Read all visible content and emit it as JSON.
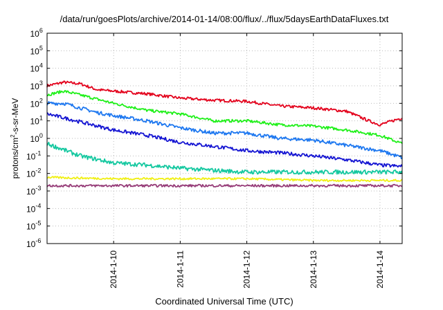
{
  "chart_data": {
    "type": "line",
    "title": "/data/run/goesPlots/archive/2014-01-14/08:00/flux/../flux/5daysEarthDataFluxes.txt",
    "xlabel": "Coordinated Universal Time (UTC)",
    "ylabel": "protons/cm2-s-sr-MeV",
    "ylabel_parts": {
      "pre": "protons/cm",
      "sup": "2",
      "post": "-s-sr-MeV"
    },
    "x_ticks": [
      "2014-1-10",
      "2014-1-11",
      "2014-1-12",
      "2014-1-13",
      "2014-1-14"
    ],
    "y_scale": "log",
    "ylim": [
      1e-06,
      1000000.0
    ],
    "y_ticks": [
      {
        "base": "10",
        "exp": "-6",
        "value": 1e-06
      },
      {
        "base": "10",
        "exp": "-5",
        "value": 1e-05
      },
      {
        "base": "10",
        "exp": "-4",
        "value": 0.0001
      },
      {
        "base": "10",
        "exp": "-3",
        "value": 0.001
      },
      {
        "base": "10",
        "exp": "-2",
        "value": 0.01
      },
      {
        "base": "10",
        "exp": "-1",
        "value": 0.1
      },
      {
        "base": "10",
        "exp": "0",
        "value": 1
      },
      {
        "base": "10",
        "exp": "1",
        "value": 10
      },
      {
        "base": "10",
        "exp": "2",
        "value": 100
      },
      {
        "base": "10",
        "exp": "3",
        "value": 1000
      },
      {
        "base": "10",
        "exp": "4",
        "value": 10000
      },
      {
        "base": "10",
        "exp": "5",
        "value": 100000
      },
      {
        "base": "10",
        "exp": "6",
        "value": 1000000
      }
    ],
    "grid": true,
    "xlim": [
      "2014-01-09 00:00",
      "2014-01-14 08:00"
    ],
    "series": [
      {
        "color": "#e3001b",
        "noise": 0.08,
        "points": [
          [
            "2014-01-09 00:00",
            1000
          ],
          [
            "2014-01-09 06:00",
            1600
          ],
          [
            "2014-01-09 12:00",
            1300
          ],
          [
            "2014-01-09 18:00",
            600
          ],
          [
            "2014-01-10 00:00",
            500
          ],
          [
            "2014-01-10 12:00",
            350
          ],
          [
            "2014-01-11 00:00",
            200
          ],
          [
            "2014-01-11 12:00",
            150
          ],
          [
            "2014-01-12 00:00",
            130
          ],
          [
            "2014-01-12 12:00",
            70
          ],
          [
            "2014-01-13 00:00",
            55
          ],
          [
            "2014-01-13 12:00",
            35
          ],
          [
            "2014-01-13 20:00",
            10
          ],
          [
            "2014-01-14 00:00",
            6
          ],
          [
            "2014-01-14 08:00",
            15
          ]
        ]
      },
      {
        "color": "#1ef018",
        "noise": 0.08,
        "points": [
          [
            "2014-01-09 00:00",
            300
          ],
          [
            "2014-01-09 06:00",
            500
          ],
          [
            "2014-01-09 12:00",
            300
          ],
          [
            "2014-01-10 00:00",
            100
          ],
          [
            "2014-01-10 12:00",
            40
          ],
          [
            "2014-01-11 00:00",
            25
          ],
          [
            "2014-01-11 12:00",
            10
          ],
          [
            "2014-01-12 00:00",
            10
          ],
          [
            "2014-01-12 12:00",
            6
          ],
          [
            "2014-01-13 00:00",
            5
          ],
          [
            "2014-01-13 12:00",
            3
          ],
          [
            "2014-01-14 00:00",
            1.5
          ],
          [
            "2014-01-14 08:00",
            0.5
          ]
        ]
      },
      {
        "color": "#1e78f0",
        "noise": 0.1,
        "points": [
          [
            "2014-01-09 00:00",
            100
          ],
          [
            "2014-01-09 06:00",
            100
          ],
          [
            "2014-01-09 18:00",
            30
          ],
          [
            "2014-01-10 00:00",
            20
          ],
          [
            "2014-01-10 12:00",
            10
          ],
          [
            "2014-01-11 00:00",
            4
          ],
          [
            "2014-01-11 12:00",
            2
          ],
          [
            "2014-01-12 00:00",
            2
          ],
          [
            "2014-01-12 12:00",
            1
          ],
          [
            "2014-01-13 00:00",
            0.8
          ],
          [
            "2014-01-13 12:00",
            0.4
          ],
          [
            "2014-01-14 00:00",
            0.2
          ],
          [
            "2014-01-14 08:00",
            0.08
          ]
        ]
      },
      {
        "color": "#1414d2",
        "noise": 0.1,
        "points": [
          [
            "2014-01-09 00:00",
            25
          ],
          [
            "2014-01-09 06:00",
            15
          ],
          [
            "2014-01-10 00:00",
            3
          ],
          [
            "2014-01-10 12:00",
            1.5
          ],
          [
            "2014-01-11 00:00",
            0.6
          ],
          [
            "2014-01-11 12:00",
            0.35
          ],
          [
            "2014-01-12 00:00",
            0.2
          ],
          [
            "2014-01-12 12:00",
            0.15
          ],
          [
            "2014-01-13 00:00",
            0.1
          ],
          [
            "2014-01-13 12:00",
            0.06
          ],
          [
            "2014-01-14 00:00",
            0.03
          ],
          [
            "2014-01-14 08:00",
            0.025
          ]
        ]
      },
      {
        "color": "#14c8a0",
        "noise": 0.12,
        "points": [
          [
            "2014-01-09 00:00",
            0.5
          ],
          [
            "2014-01-09 12:00",
            0.1
          ],
          [
            "2014-01-10 00:00",
            0.04
          ],
          [
            "2014-01-10 12:00",
            0.03
          ],
          [
            "2014-01-11 00:00",
            0.02
          ],
          [
            "2014-01-11 12:00",
            0.015
          ],
          [
            "2014-01-12 00:00",
            0.012
          ],
          [
            "2014-01-13 00:00",
            0.012
          ],
          [
            "2014-01-14 00:00",
            0.012
          ],
          [
            "2014-01-14 08:00",
            0.012
          ]
        ]
      },
      {
        "color": "#f0f014",
        "noise": 0.06,
        "points": [
          [
            "2014-01-09 00:00",
            0.006
          ],
          [
            "2014-01-10 00:00",
            0.005
          ],
          [
            "2014-01-11 00:00",
            0.005
          ],
          [
            "2014-01-12 00:00",
            0.005
          ],
          [
            "2014-01-13 00:00",
            0.004
          ],
          [
            "2014-01-14 00:00",
            0.004
          ],
          [
            "2014-01-14 08:00",
            0.004
          ]
        ]
      },
      {
        "color": "#963c78",
        "noise": 0.07,
        "points": [
          [
            "2014-01-09 00:00",
            0.002
          ],
          [
            "2014-01-10 00:00",
            0.002
          ],
          [
            "2014-01-11 00:00",
            0.002
          ],
          [
            "2014-01-12 00:00",
            0.002
          ],
          [
            "2014-01-13 00:00",
            0.002
          ],
          [
            "2014-01-14 00:00",
            0.002
          ],
          [
            "2014-01-14 08:00",
            0.002
          ]
        ]
      }
    ]
  }
}
